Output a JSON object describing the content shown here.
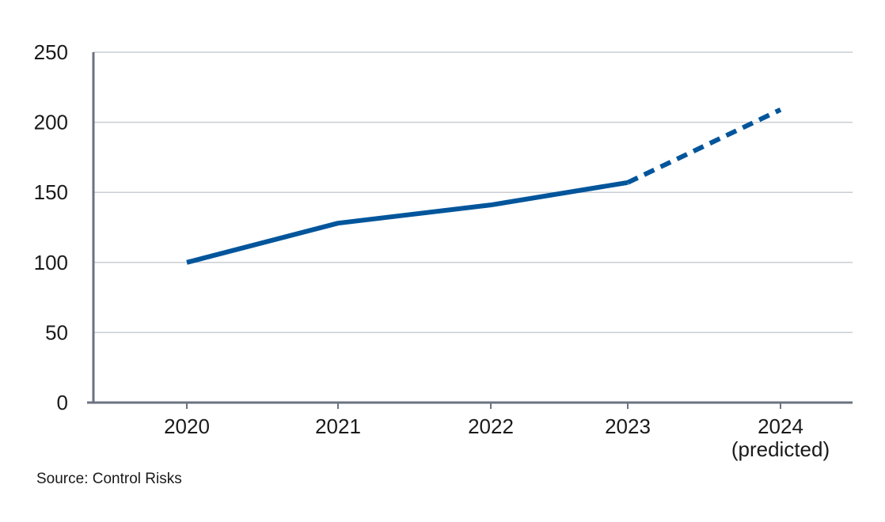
{
  "chart_data": {
    "type": "line",
    "title": "",
    "xlabel": "",
    "ylabel": "",
    "categories": [
      "2020",
      "2021",
      "2022",
      "2023",
      "2024\n(predicted)"
    ],
    "x_tick_labels": [
      {
        "lines": [
          "2020"
        ]
      },
      {
        "lines": [
          "2021"
        ]
      },
      {
        "lines": [
          "2022"
        ]
      },
      {
        "lines": [
          "2023"
        ]
      },
      {
        "lines": [
          "2024",
          "(predicted)"
        ]
      }
    ],
    "y_ticks": [
      0,
      50,
      100,
      150,
      200,
      250
    ],
    "ylim": [
      0,
      250
    ],
    "grid": true,
    "series": [
      {
        "values": [
          100,
          128,
          141,
          157,
          209
        ],
        "color": "#00559b",
        "dashed_from_index": 3
      }
    ]
  },
  "source_text": "Source: Control Risks",
  "colors": {
    "axis": "#6b7280",
    "grid": "#c9cdd2",
    "line": "#00559b",
    "text": "#1a1a1a"
  }
}
